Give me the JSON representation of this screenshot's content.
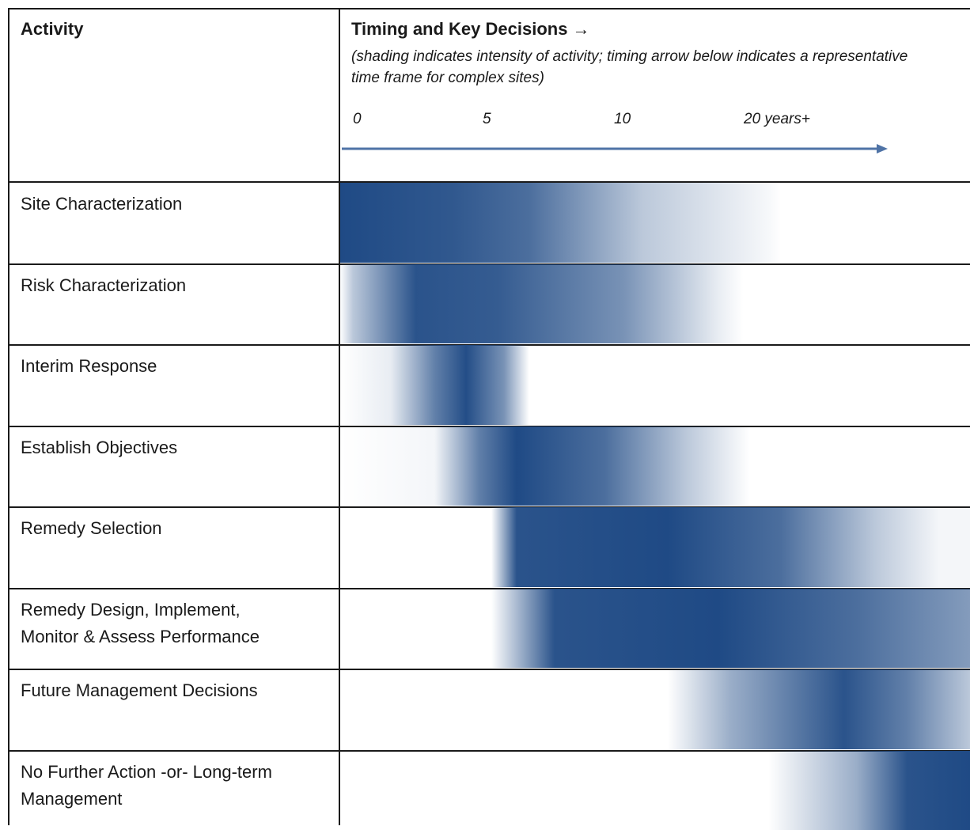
{
  "header": {
    "activity_label": "Activity",
    "timing_title": "Timing and Key Decisions →",
    "timing_note": "(shading indicates intensity of activity; timing arrow below indicates a representative time frame for complex sites)",
    "ticks": [
      "0",
      "5",
      "10",
      "20 years+"
    ]
  },
  "colors": {
    "shade": "#1f4a85",
    "line": "#1a1a1a",
    "arrow": "#4f73a6"
  },
  "activities": [
    {
      "label": "Site Characterization",
      "intensity": [
        [
          0,
          1
        ],
        [
          0.18,
          0.92
        ],
        [
          0.3,
          0.8
        ],
        [
          0.48,
          0.3
        ],
        [
          0.68,
          0.04
        ],
        [
          0.7,
          0
        ]
      ]
    },
    {
      "label": "Risk Characterization",
      "intensity": [
        [
          0,
          0
        ],
        [
          0.02,
          0.3
        ],
        [
          0.12,
          0.95
        ],
        [
          0.25,
          0.9
        ],
        [
          0.45,
          0.6
        ],
        [
          0.6,
          0.1
        ],
        [
          0.64,
          0
        ]
      ]
    },
    {
      "label": "Interim Response",
      "intensity": [
        [
          0,
          0
        ],
        [
          0.08,
          0.1
        ],
        [
          0.15,
          0.7
        ],
        [
          0.2,
          0.98
        ],
        [
          0.26,
          0.6
        ],
        [
          0.3,
          0
        ]
      ]
    },
    {
      "label": "Establish Objectives",
      "intensity": [
        [
          0,
          0
        ],
        [
          0.15,
          0.05
        ],
        [
          0.22,
          0.7
        ],
        [
          0.28,
          1
        ],
        [
          0.42,
          0.8
        ],
        [
          0.55,
          0.3
        ],
        [
          0.65,
          0
        ]
      ]
    },
    {
      "label": "Remedy Selection",
      "intensity": [
        [
          0,
          0
        ],
        [
          0.24,
          0
        ],
        [
          0.28,
          0.95
        ],
        [
          0.52,
          1
        ],
        [
          0.7,
          0.8
        ],
        [
          0.85,
          0.3
        ],
        [
          0.95,
          0.05
        ]
      ]
    },
    {
      "label": "Remedy Design, Implement,\nMonitor & Assess Performance",
      "intensity": [
        [
          0,
          0
        ],
        [
          0.24,
          0
        ],
        [
          0.34,
          0.95
        ],
        [
          0.6,
          1
        ],
        [
          0.82,
          0.8
        ],
        [
          1,
          0.55
        ]
      ]
    },
    {
      "label": "Future Management Decisions",
      "intensity": [
        [
          0,
          0
        ],
        [
          0.52,
          0
        ],
        [
          0.62,
          0.45
        ],
        [
          0.8,
          0.95
        ],
        [
          0.9,
          0.7
        ],
        [
          1,
          0.3
        ]
      ]
    },
    {
      "label": "No Further Action -or- Long-term\nManagement",
      "intensity": [
        [
          0,
          0
        ],
        [
          0.68,
          0
        ],
        [
          0.82,
          0.45
        ],
        [
          0.9,
          0.95
        ],
        [
          1,
          1
        ]
      ]
    }
  ]
}
